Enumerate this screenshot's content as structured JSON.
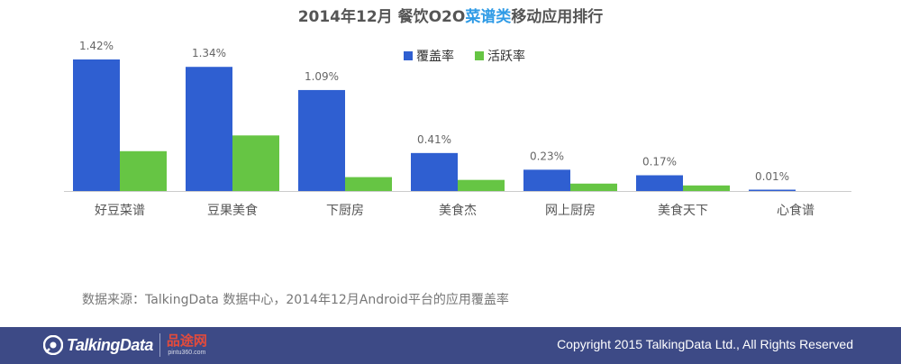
{
  "title": {
    "prefix": "2014年12月 餐饮O2O",
    "highlight": "菜谱类",
    "suffix": "移动应用排行"
  },
  "chart_data": {
    "type": "bar",
    "categories": [
      "好豆菜谱",
      "豆果美食",
      "下厨房",
      "美食杰",
      "网上厨房",
      "美食天下",
      "心食谱"
    ],
    "series": [
      {
        "name": "覆盖率",
        "color": "#2f5fd1",
        "values": [
          1.42,
          1.34,
          1.09,
          0.41,
          0.23,
          0.17,
          0.01
        ]
      },
      {
        "name": "活跃率",
        "color": "#66c544",
        "values": [
          0.43,
          0.6,
          0.15,
          0.12,
          0.08,
          0.06,
          0.0
        ]
      }
    ],
    "data_labels": [
      "1.42%",
      "1.34%",
      "1.09%",
      "0.41%",
      "0.23%",
      "0.17%",
      "0.01%"
    ],
    "ylim": [
      0,
      1.42
    ],
    "legend_position": "top-center",
    "grid": false
  },
  "source_note": "数据来源：TalkingData 数据中心，2014年12月Android平台的应用覆盖率",
  "footer": {
    "logo_text": "TalkingData",
    "partner_name": "品途网",
    "partner_url": "pintu360.com",
    "copyright": "Copyright 2015 TalkingData Ltd., All Rights Reserved",
    "background": "#3d4a86"
  }
}
